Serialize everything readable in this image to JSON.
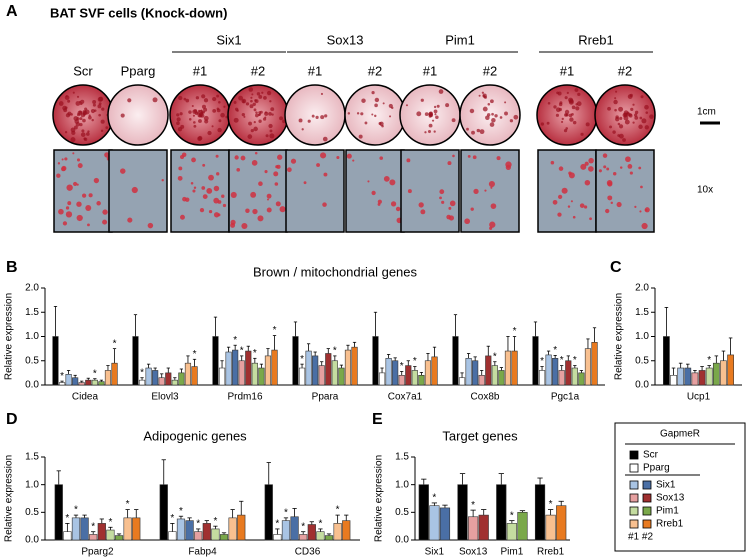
{
  "panel_a": {
    "letter": "A",
    "title": "BAT SVF cells (Knock-down)",
    "groups": [
      "Six1",
      "Sox13",
      "Pim1",
      "Rreb1"
    ],
    "columns": [
      "Scr",
      "Pparg",
      "#1",
      "#2",
      "#1",
      "#2",
      "#1",
      "#2",
      "#1",
      "#2"
    ],
    "scale_label": "1cm",
    "magnification": "10x"
  },
  "chart_data": [
    {
      "type": "bar",
      "letter": "B",
      "title": "Brown / mitochondrial genes",
      "ylabel": "Relative expression",
      "star_label": "*",
      "categories": [
        "Cidea",
        "Elovl3",
        "Prdm16",
        "Ppara",
        "Cox7a1",
        "Cox8b",
        "Pgc1a"
      ],
      "ylim": [
        0,
        2
      ],
      "yticks": [
        {
          "value": 0,
          "label": "0.0"
        },
        {
          "value": 0.5,
          "label": "0.5"
        },
        {
          "value": 1,
          "label": "1.0"
        },
        {
          "value": 1.5,
          "label": "1.5"
        },
        {
          "value": 2,
          "label": "2.0"
        }
      ],
      "series": [
        {
          "name": "Scr",
          "color": "#000000",
          "values": [
            1,
            1,
            1,
            1,
            1,
            1,
            1
          ],
          "errors": [
            0.62,
            0.45,
            0.4,
            0.3,
            0.5,
            0.45,
            0.3
          ]
        },
        {
          "name": "Pparg",
          "color": "#ffffff",
          "values": [
            0.05,
            0.1,
            0.35,
            0.35,
            0.25,
            0.15,
            0.3
          ],
          "errors": [
            0.03,
            0.05,
            0.15,
            0.08,
            0.1,
            0.1,
            0.08
          ],
          "stars": [
            true,
            true,
            false,
            true,
            false,
            false,
            true
          ]
        },
        {
          "name": "Six1",
          "color": "#a9c4e4",
          "color2": "#4a6fa5",
          "values": [
            0.22,
            0.35,
            0.68,
            0.7,
            0.55,
            0.55,
            0.62
          ],
          "values2": [
            0.15,
            0.3,
            0.72,
            0.6,
            0.5,
            0.5,
            0.55
          ],
          "errors": [
            0.08,
            0.08,
            0.1,
            0.15,
            0.08,
            0.1,
            0.08
          ],
          "errors2": [
            0.05,
            0.05,
            0.1,
            0.08,
            0.06,
            0.08,
            0.06
          ],
          "stars2": [
            false,
            false,
            true,
            false,
            false,
            false,
            true
          ]
        },
        {
          "name": "Sox13",
          "color": "#e6a0a0",
          "color2": "#a03030",
          "values": [
            0.05,
            0.15,
            0.5,
            0.4,
            0.2,
            0.2,
            0.3
          ],
          "values2": [
            0.1,
            0.25,
            0.7,
            0.65,
            0.4,
            0.6,
            0.5
          ],
          "errors": [
            0.03,
            0.08,
            0.1,
            0.08,
            0.08,
            0.1,
            0.1
          ],
          "errors2": [
            0.04,
            0.1,
            0.1,
            0.1,
            0.1,
            0.2,
            0.1
          ],
          "stars": [
            false,
            false,
            true,
            false,
            true,
            false,
            true
          ]
        },
        {
          "name": "Pim1",
          "color": "#c4dca0",
          "color2": "#7aa84a",
          "values": [
            0.1,
            0.1,
            0.45,
            0.5,
            0.3,
            0.4,
            0.35
          ],
          "values2": [
            0.07,
            0.25,
            0.35,
            0.35,
            0.2,
            0.3,
            0.25
          ],
          "errors": [
            0.03,
            0.05,
            0.1,
            0.1,
            0.08,
            0.08,
            0.05
          ],
          "errors2": [
            0.03,
            0.08,
            0.08,
            0.06,
            0.06,
            0.06,
            0.05
          ],
          "stars": [
            true,
            false,
            true,
            true,
            true,
            true,
            true
          ]
        },
        {
          "name": "Rreb1",
          "color": "#f8c090",
          "color2": "#e87a20",
          "values": [
            0.3,
            0.45,
            0.6,
            0.72,
            0.5,
            0.7,
            0.75
          ],
          "values2": [
            0.45,
            0.38,
            0.72,
            0.78,
            0.58,
            0.7,
            0.88
          ],
          "errors": [
            0.1,
            0.15,
            0.15,
            0.1,
            0.15,
            0.3,
            0.2
          ],
          "errors2": [
            0.3,
            0.15,
            0.3,
            0.1,
            0.2,
            0.3,
            0.3
          ],
          "stars2": [
            true,
            true,
            true,
            false,
            false,
            true,
            false
          ]
        }
      ]
    },
    {
      "type": "bar",
      "letter": "C",
      "ylabel": "Relative expression",
      "star_label": "*",
      "categories": [
        "Ucp1"
      ],
      "ylim": [
        0,
        2
      ],
      "yticks": [
        {
          "value": 0,
          "label": "0.0"
        },
        {
          "value": 0.5,
          "label": "0.5"
        },
        {
          "value": 1,
          "label": "1.0"
        },
        {
          "value": 1.5,
          "label": "1.5"
        },
        {
          "value": 2,
          "label": "2.0"
        }
      ],
      "series": [
        {
          "name": "Scr",
          "color": "#000000",
          "values": [
            1
          ],
          "errors": [
            0.6
          ]
        },
        {
          "name": "Pparg",
          "color": "#ffffff",
          "values": [
            0.2
          ],
          "errors": [
            0.15
          ]
        },
        {
          "name": "Six1",
          "color": "#a9c4e4",
          "color2": "#4a6fa5",
          "values": [
            0.35
          ],
          "values2": [
            0.35
          ],
          "errors": [
            0.1
          ],
          "errors2": [
            0.08
          ]
        },
        {
          "name": "Sox13",
          "color": "#e6a0a0",
          "color2": "#a03030",
          "values": [
            0.25
          ],
          "values2": [
            0.3
          ],
          "errors": [
            0.05
          ],
          "errors2": [
            0.08
          ]
        },
        {
          "name": "Pim1",
          "color": "#c4dca0",
          "color2": "#7aa84a",
          "values": [
            0.35
          ],
          "values2": [
            0.45
          ],
          "errors": [
            0.05
          ],
          "errors2": [
            0.15
          ],
          "stars": [
            true
          ]
        },
        {
          "name": "Rreb1",
          "color": "#f8c090",
          "color2": "#e87a20",
          "values": [
            0.5
          ],
          "values2": [
            0.62
          ],
          "errors": [
            0.2
          ],
          "errors2": [
            0.35
          ]
        }
      ]
    },
    {
      "type": "bar",
      "letter": "D",
      "title": "Adipogenic genes",
      "ylabel": "Relative expression",
      "star_label": "*",
      "categories": [
        "Pparg2",
        "Fabp4",
        "CD36"
      ],
      "ylim": [
        0,
        1.5
      ],
      "yticks": [
        {
          "value": 0,
          "label": "0.0"
        },
        {
          "value": 0.5,
          "label": "0.5"
        },
        {
          "value": 1,
          "label": "1.0"
        },
        {
          "value": 1.5,
          "label": "1.5"
        }
      ],
      "series": [
        {
          "name": "Scr",
          "color": "#000000",
          "values": [
            1,
            1,
            1
          ],
          "errors": [
            0.25,
            0.45,
            0.4
          ]
        },
        {
          "name": "Pparg",
          "color": "#ffffff",
          "values": [
            0.15,
            0.15,
            0.1
          ],
          "errors": [
            0.15,
            0.15,
            0.1
          ],
          "stars": [
            true,
            true,
            true
          ]
        },
        {
          "name": "Six1",
          "color": "#a9c4e4",
          "color2": "#4a6fa5",
          "values": [
            0.4,
            0.38,
            0.35
          ],
          "values2": [
            0.4,
            0.35,
            0.42
          ],
          "errors": [
            0.05,
            0.05,
            0.05
          ],
          "errors2": [
            0.05,
            0.05,
            0.15
          ],
          "stars": [
            true,
            true,
            true
          ]
        },
        {
          "name": "Sox13",
          "color": "#e6a0a0",
          "color2": "#a03030",
          "values": [
            0.1,
            0.15,
            0.1
          ],
          "values2": [
            0.3,
            0.3,
            0.28
          ],
          "errors": [
            0.05,
            0.05,
            0.05
          ],
          "errors2": [
            0.08,
            0.05,
            0.05
          ],
          "stars": [
            true,
            true,
            true
          ]
        },
        {
          "name": "Pim1",
          "color": "#c4dca0",
          "color2": "#7aa84a",
          "values": [
            0.18,
            0.2,
            0.15
          ],
          "values2": [
            0.08,
            0.1,
            0.08
          ],
          "errors": [
            0.05,
            0.05,
            0.05
          ],
          "errors2": [
            0.03,
            0.03,
            0.03
          ],
          "stars": [
            true,
            true,
            true
          ]
        },
        {
          "name": "Rreb1",
          "color": "#f8c090",
          "color2": "#e87a20",
          "values": [
            0.4,
            0.4,
            0.3
          ],
          "values2": [
            0.4,
            0.45,
            0.35
          ],
          "errors": [
            0.15,
            0.15,
            0.15
          ],
          "errors2": [
            0.15,
            0.25,
            0.1
          ],
          "stars": [
            true,
            false,
            true
          ]
        }
      ]
    },
    {
      "type": "bar",
      "letter": "E",
      "title": "Target genes",
      "ylabel": "Relative expression",
      "star_label": "*",
      "categories": [
        "Six1",
        "Sox13",
        "Pim1",
        "Rreb1"
      ],
      "ylim": [
        0,
        1.5
      ],
      "yticks": [
        {
          "value": 0,
          "label": "0.0"
        },
        {
          "value": 0.5,
          "label": "0.5"
        },
        {
          "value": 1,
          "label": "1.0"
        },
        {
          "value": 1.5,
          "label": "1.5"
        }
      ],
      "series": [
        {
          "color": "#000000",
          "values": [
            1,
            1,
            1,
            1
          ],
          "errors": [
            0.1,
            0.2,
            0.2,
            0.12
          ]
        },
        {
          "colors": [
            "#a9c4e4",
            "#e6a0a0",
            "#c4dca0",
            "#f8c090"
          ],
          "colors2": [
            "#4a6fa5",
            "#a03030",
            "#7aa84a",
            "#e87a20"
          ],
          "values": [
            0.62,
            0.42,
            0.3,
            0.45
          ],
          "values2": [
            0.58,
            0.45,
            0.5,
            0.62
          ],
          "errors": [
            0.05,
            0.12,
            0.05,
            0.1
          ],
          "errors2": [
            0.05,
            0.1,
            0.03,
            0.08
          ],
          "stars": [
            true,
            true,
            true,
            true
          ]
        }
      ]
    }
  ],
  "legend": {
    "title": "GapmeR",
    "pair_label": "#1 #2"
  }
}
